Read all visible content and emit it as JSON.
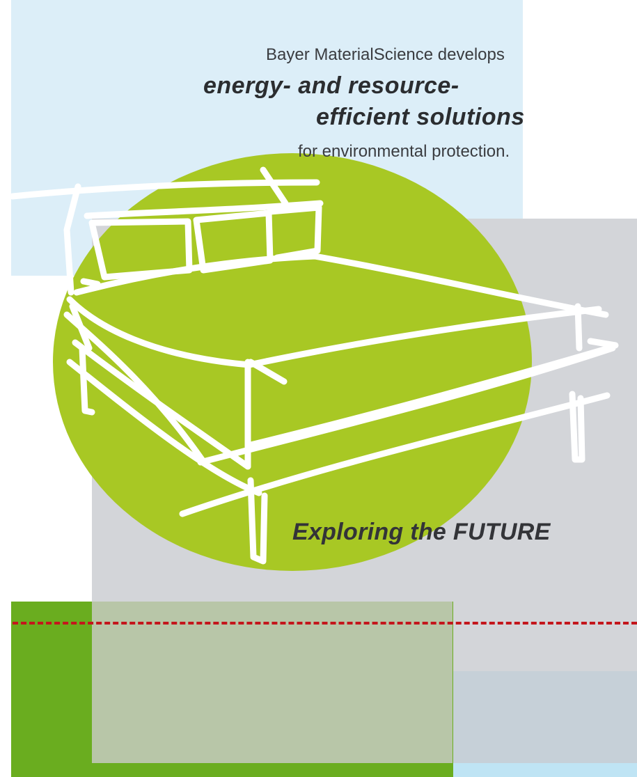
{
  "headline": {
    "line1": "Bayer MaterialScience develops",
    "line2": "energy- and resource-",
    "line3": "efficient solutions",
    "line4": "for environmental protection."
  },
  "tagline": "Exploring the FUTURE",
  "colors": {
    "light_blue": "#dceef8",
    "light_gray": "#d3d5d9",
    "lime_green": "#a8c824",
    "dark_green": "#6aad1f",
    "sage_gray": "#b8c6a8",
    "blue_gray": "#c6d0d8",
    "accent_red": "#c4161c",
    "text_dark": "#2b2d30"
  }
}
